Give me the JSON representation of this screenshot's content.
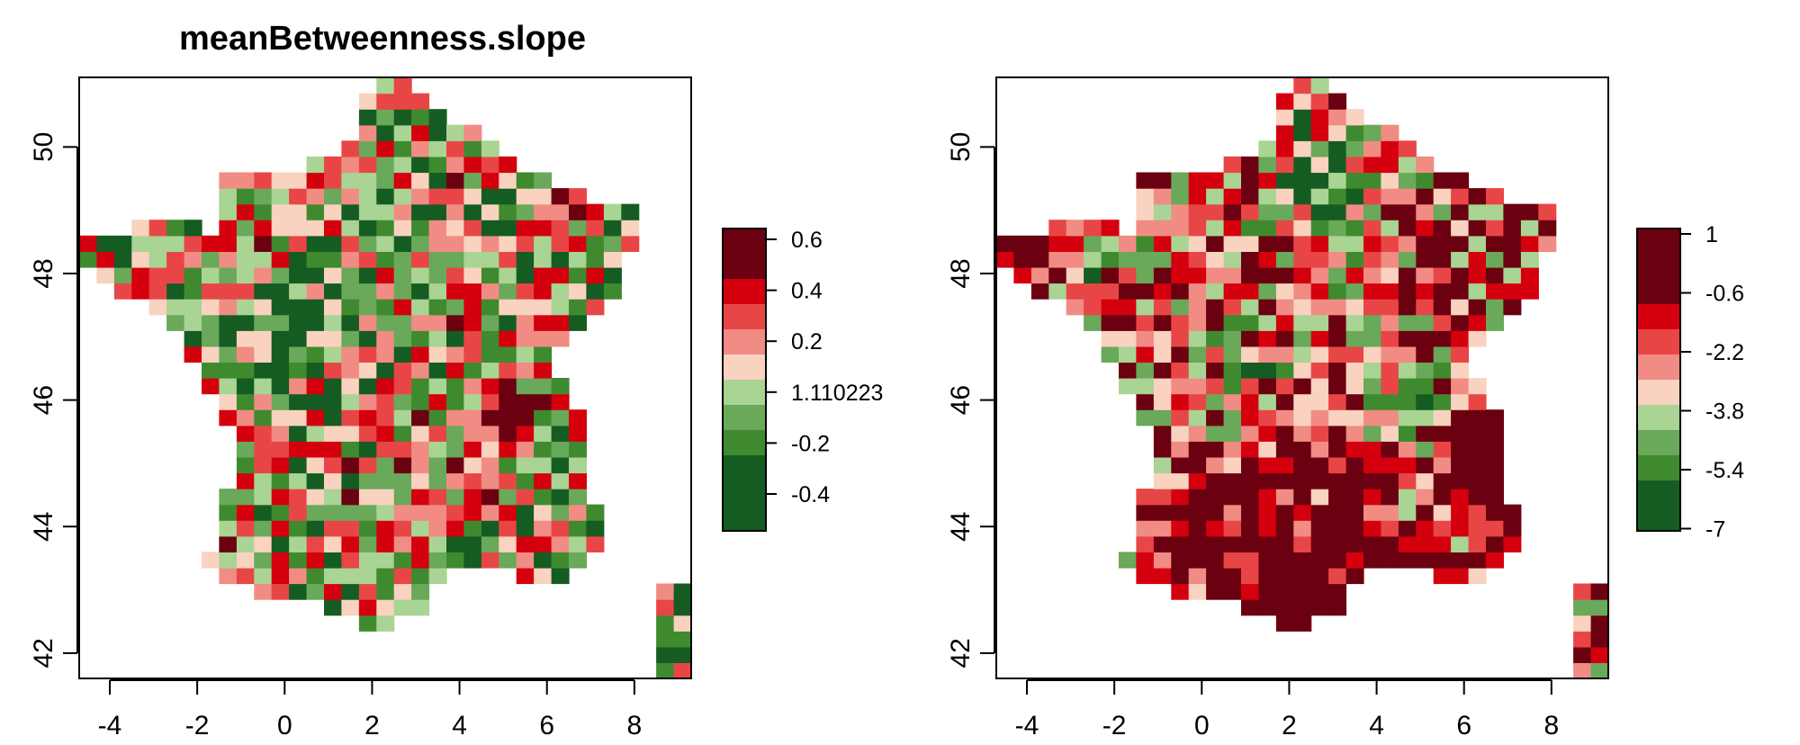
{
  "chart_data": [
    {
      "type": "heatmap",
      "title": "meanBetweenness.slope",
      "xlabel": "",
      "ylabel": "",
      "xlim": [
        -4.7,
        9.3
      ],
      "ylim": [
        41.6,
        51.1
      ],
      "x_ticks": [
        "-4",
        "-2",
        "0",
        "2",
        "4",
        "6",
        "8"
      ],
      "y_ticks": [
        "42",
        "44",
        "46",
        "48",
        "50"
      ],
      "cell_size_deg": [
        0.4,
        0.25
      ],
      "legend": {
        "placement": "right",
        "labels": [
          "0.6",
          "0.4",
          "0.2",
          "1.110223",
          "-0.2",
          "-0.4"
        ],
        "colors": [
          "#6b0010",
          "#6b0010",
          "#d4000e",
          "#e84646",
          "#f08c84",
          "#f9d2c0",
          "#a9d494",
          "#6aa85a",
          "#3f8a2e",
          "#155c22",
          "#155c22",
          "#155c22"
        ]
      },
      "grid": false,
      "seed": 7,
      "balance": 0.5,
      "blobs": [
        {
          "lon": 5.0,
          "lat": 45.9,
          "r": 0.75,
          "v": 1.0
        },
        {
          "lon": 0.2,
          "lat": 47.2,
          "r": 1.2,
          "v": -0.6
        },
        {
          "lon": -1.2,
          "lat": 48.1,
          "r": 1.0,
          "v": 0.25
        },
        {
          "lon": 6.6,
          "lat": 49.1,
          "r": 0.6,
          "v": 0.7
        },
        {
          "lon": 3.0,
          "lat": 44.6,
          "r": 1.0,
          "v": 0.35
        }
      ]
    },
    {
      "type": "heatmap",
      "title": "",
      "xlabel": "",
      "ylabel": "",
      "xlim": [
        -4.7,
        9.3
      ],
      "ylim": [
        41.6,
        51.1
      ],
      "x_ticks": [
        "-4",
        "-2",
        "0",
        "2",
        "4",
        "6",
        "8"
      ],
      "y_ticks": [
        "42",
        "44",
        "46",
        "48",
        "50"
      ],
      "cell_size_deg": [
        0.4,
        0.25
      ],
      "legend": {
        "placement": "right",
        "labels": [
          "1",
          "-0.6",
          "-2.2",
          "-3.8",
          "-5.4",
          "-7"
        ],
        "colors": [
          "#6b0010",
          "#6b0010",
          "#6b0010",
          "#d4000e",
          "#e84646",
          "#f08c84",
          "#f9d2c0",
          "#a9d494",
          "#6aa85a",
          "#3f8a2e",
          "#155c22",
          "#155c22"
        ]
      },
      "grid": false,
      "seed": 11,
      "balance": 0.35,
      "blobs": [
        {
          "lon": 6.9,
          "lat": 45.0,
          "r": 1.1,
          "v": 1.6
        },
        {
          "lon": 2.3,
          "lat": 43.0,
          "r": 1.1,
          "v": 1.3
        },
        {
          "lon": -4.0,
          "lat": 48.45,
          "r": 0.7,
          "v": 1.3
        },
        {
          "lon": 2.8,
          "lat": 49.4,
          "r": 1.4,
          "v": -0.9
        },
        {
          "lon": 0.2,
          "lat": 43.9,
          "r": 1.3,
          "v": 0.7
        },
        {
          "lon": 3.5,
          "lat": 44.4,
          "r": 1.0,
          "v": 0.7
        },
        {
          "lon": 0.8,
          "lat": 46.6,
          "r": 1.1,
          "v": -0.4
        },
        {
          "lon": 4.9,
          "lat": 46.0,
          "r": 1.0,
          "v": -0.5
        },
        {
          "lon": -2.3,
          "lat": 47.9,
          "r": 1.2,
          "v": -0.3
        }
      ]
    }
  ]
}
